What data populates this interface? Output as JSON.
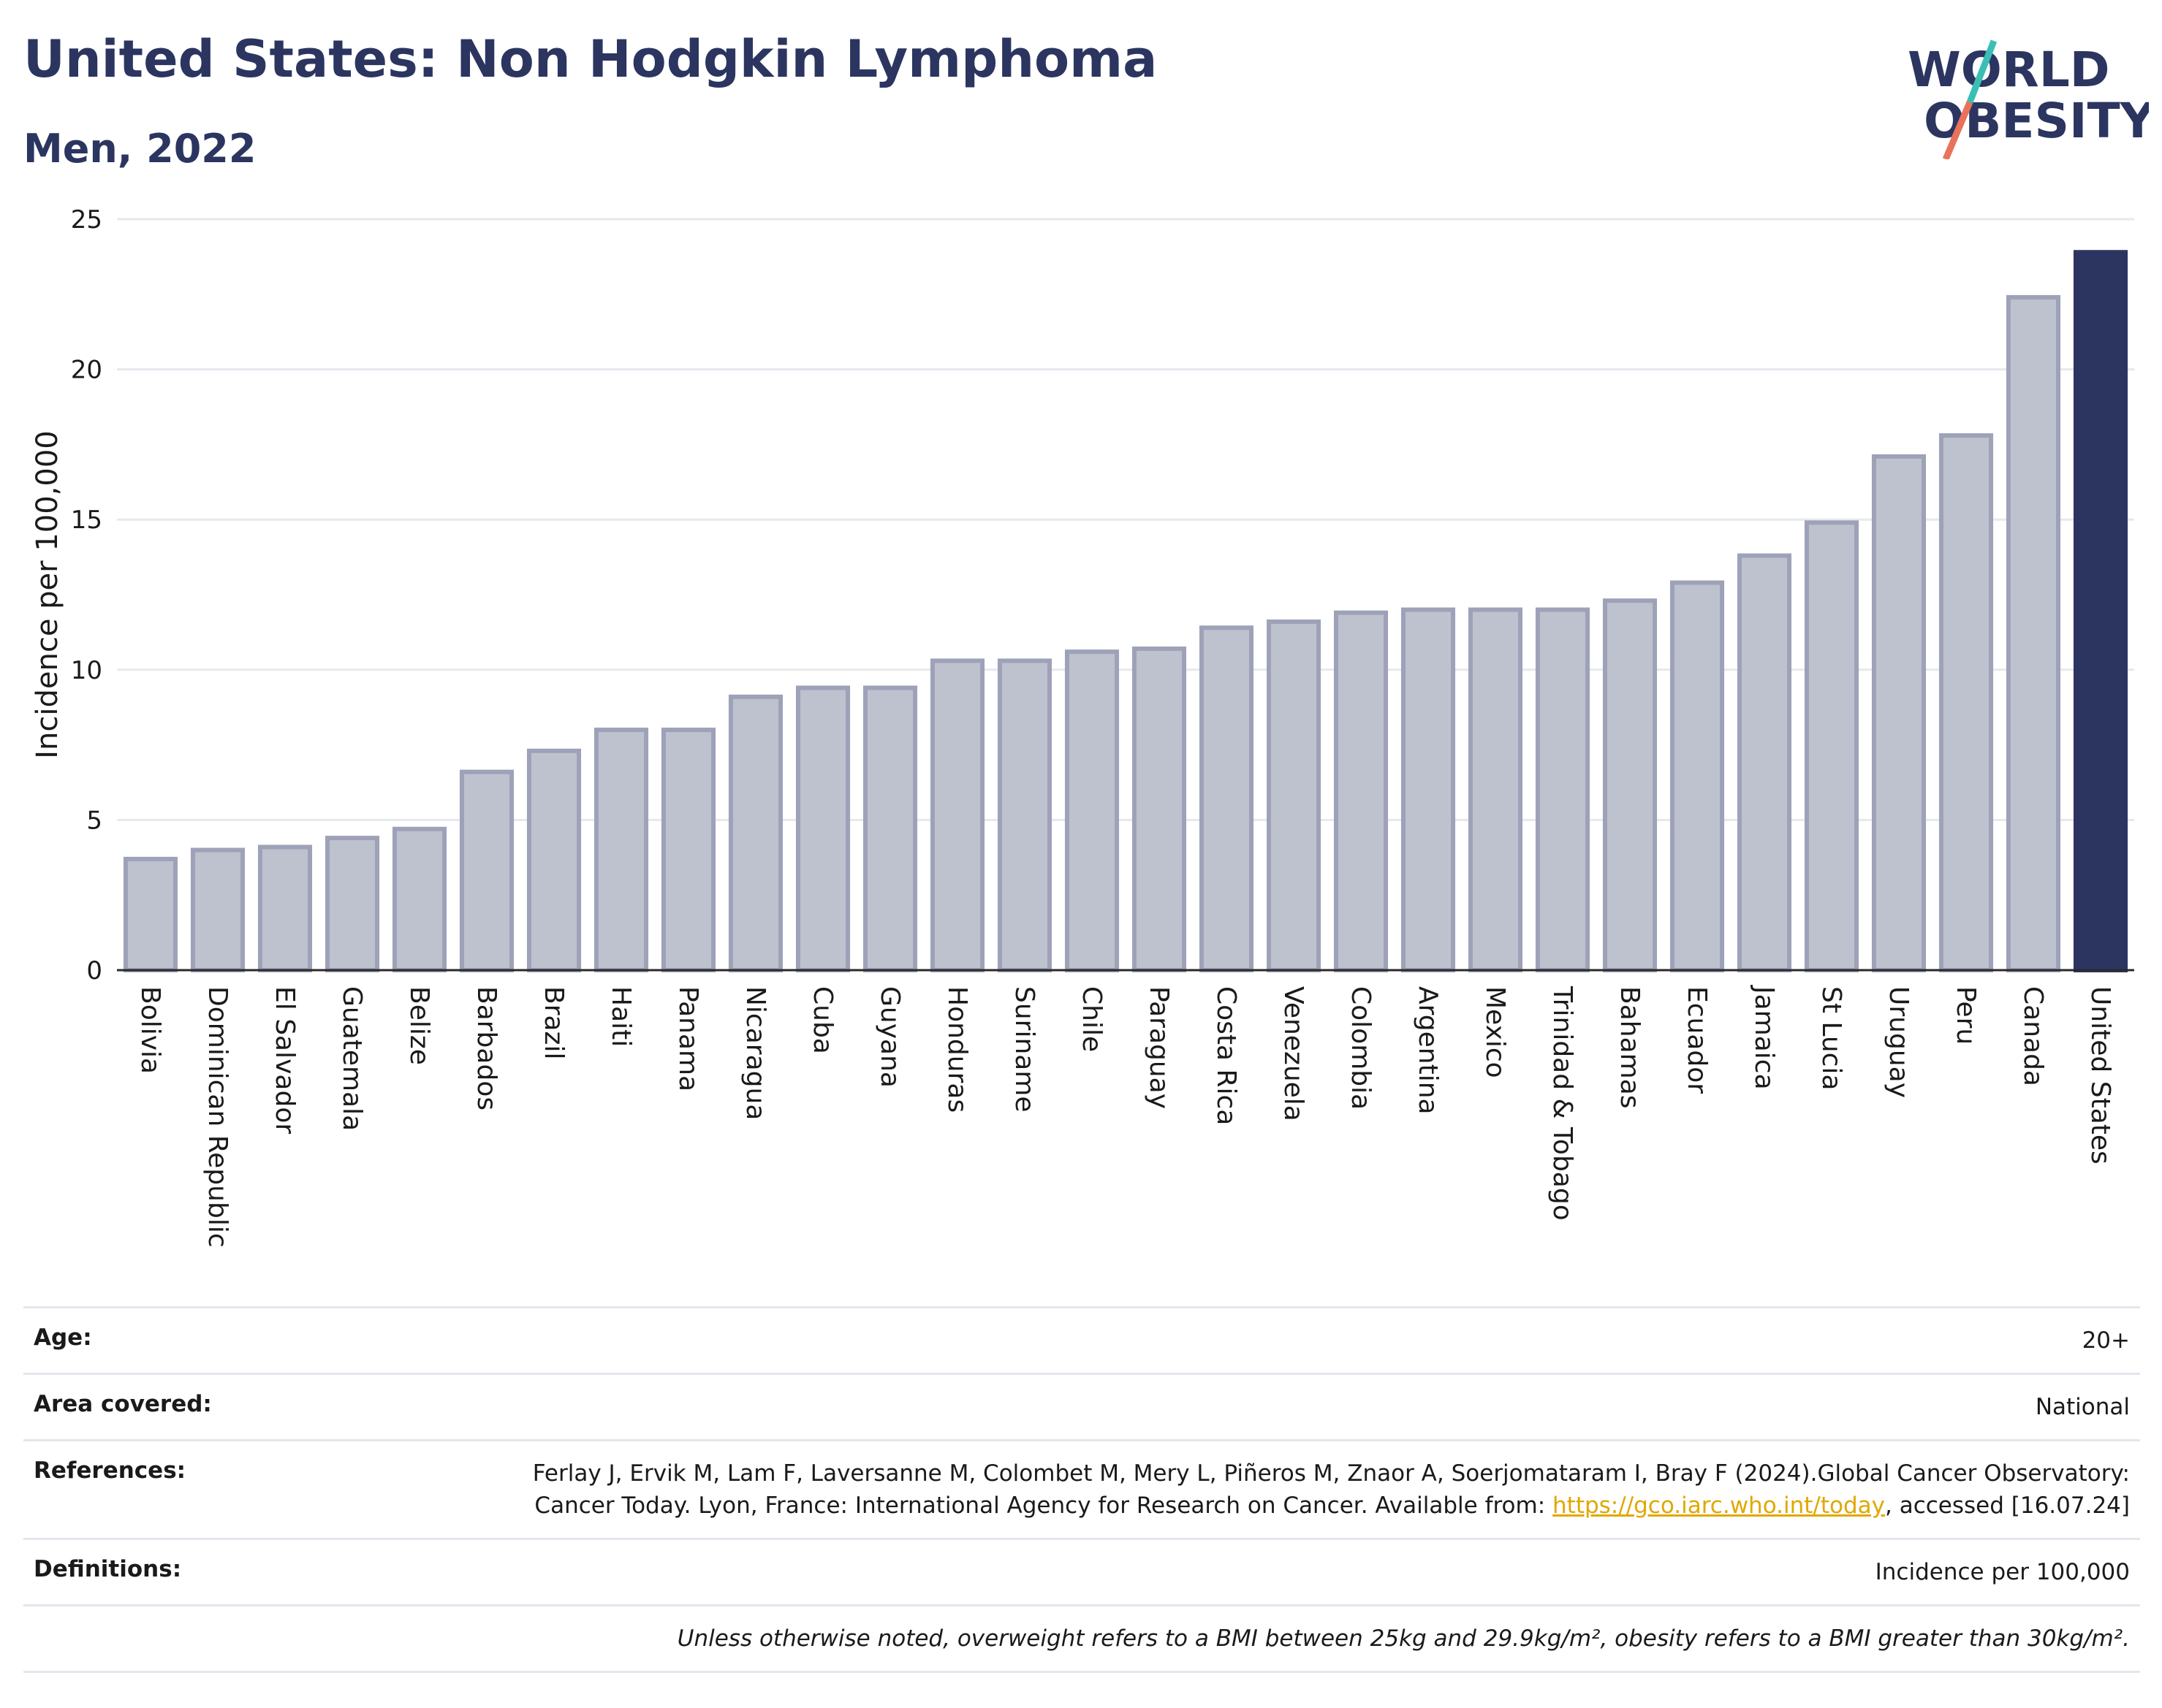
{
  "header": {
    "title": "United States: Non Hodgkin Lymphoma",
    "subtitle": "Men, 2022"
  },
  "logo": {
    "line1": "WORLD",
    "line2": "OBESITY"
  },
  "colors": {
    "bar_default": "#bec1ce",
    "bar_border": "#9ea2b8",
    "bar_highlight": "#2b3560",
    "title": "#2b3560",
    "link": "#e0a800"
  },
  "chart_data": {
    "type": "bar",
    "ylabel": "Incidence per 100,000",
    "xlabel": "",
    "ylim": [
      0,
      25
    ],
    "yticks": [
      0,
      5,
      10,
      15,
      20,
      25
    ],
    "grid": true,
    "highlight": "United States",
    "categories": [
      "Bolivia",
      "Dominican Republic",
      "El Salvador",
      "Guatemala",
      "Belize",
      "Barbados",
      "Brazil",
      "Haiti",
      "Panama",
      "Nicaragua",
      "Cuba",
      "Guyana",
      "Honduras",
      "Suriname",
      "Chile",
      "Paraguay",
      "Costa Rica",
      "Venezuela",
      "Colombia",
      "Argentina",
      "Mexico",
      "Trinidad & Tobago",
      "Bahamas",
      "Ecuador",
      "Jamaica",
      "St Lucia",
      "Uruguay",
      "Peru",
      "Canada",
      "United States"
    ],
    "values": [
      3.7,
      4.0,
      4.1,
      4.4,
      4.7,
      6.6,
      7.3,
      8.0,
      8.0,
      9.1,
      9.4,
      9.4,
      10.3,
      10.3,
      10.6,
      10.7,
      11.4,
      11.6,
      11.9,
      12.0,
      12.0,
      12.0,
      12.3,
      12.9,
      13.8,
      14.9,
      17.1,
      17.8,
      22.4,
      23.9
    ]
  },
  "info": {
    "age_label": "Age:",
    "age_value": "20+",
    "area_label": "Area covered:",
    "area_value": "National",
    "refs_label": "References:",
    "refs_text": "Ferlay J, Ervik M, Lam F, Laversanne M, Colombet M, Mery L, Piñeros M, Znaor A, Soerjomataram I, Bray F (2024).Global Cancer Observatory: Cancer Today. Lyon, France: International Agency for Research on Cancer. Available from: ",
    "refs_link": "https://gco.iarc.who.int/today",
    "refs_tail": ", accessed [16.07.24]",
    "defs_label": "Definitions:",
    "defs_value": "Incidence per 100,000",
    "note": "Unless otherwise noted, overweight refers to a BMI between 25kg and 29.9kg/m², obesity refers to a BMI greater than 30kg/m²."
  }
}
